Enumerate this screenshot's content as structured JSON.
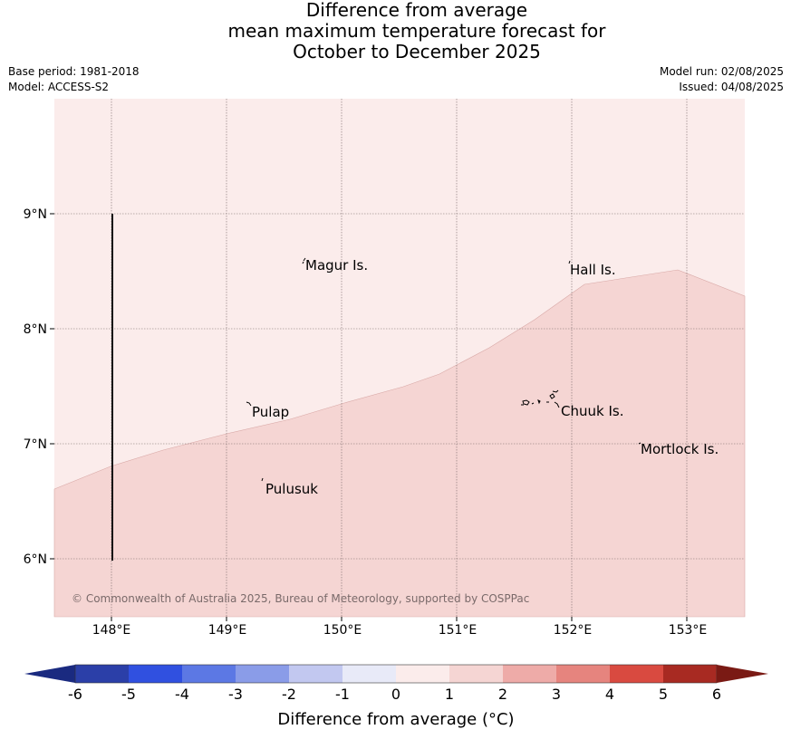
{
  "title": {
    "line1": "Difference from average",
    "line2": "mean maximum temperature forecast for",
    "line3": "October to December 2025"
  },
  "meta": {
    "base_period": "Base period: 1981-2018",
    "model": "Model: ACCESS-S2",
    "model_run": "Model run: 02/08/2025",
    "issued": "Issued: 04/08/2025"
  },
  "map": {
    "lon_labels": [
      "148°E",
      "149°E",
      "150°E",
      "151°E",
      "152°E",
      "153°E"
    ],
    "lat_labels": [
      "9°N",
      "8°N",
      "7°N",
      "6°N"
    ],
    "places": [
      {
        "name": "Magur Is.",
        "lon": 149.67,
        "lat": 8.57
      },
      {
        "name": "Hall Is.",
        "lon": 151.99,
        "lat": 8.54
      },
      {
        "name": "Pulap",
        "lon": 149.2,
        "lat": 7.33
      },
      {
        "name": "Chuuk Is.",
        "lon": 151.85,
        "lat": 7.33
      },
      {
        "name": "Mortlock Is.",
        "lon": 152.58,
        "lat": 6.98
      },
      {
        "name": "Pulusuk",
        "lon": 149.3,
        "lat": 6.67
      }
    ],
    "copyright": "© Commonwealth of Australia 2025, Bureau of Meteorology, supported by COSPPac",
    "shading": {
      "zone_1_to_2_color": "#f5d5d3",
      "zone_0_to_1_color": "#fbeceb"
    }
  },
  "colorbar": {
    "ticks": [
      "-6",
      "-5",
      "-4",
      "-3",
      "-2",
      "-1",
      "0",
      "1",
      "2",
      "3",
      "4",
      "5",
      "6"
    ],
    "colors": [
      "#2b3fa8",
      "#3050e0",
      "#5c78e4",
      "#8a9ce8",
      "#c2c8f0",
      "#e8eaf8",
      "#fbeceb",
      "#f5d5d3",
      "#eeaba8",
      "#e6847e",
      "#d94a40",
      "#a82a22"
    ],
    "low_extend_color": "#1a2a80",
    "high_extend_color": "#7a1a14",
    "label": "Difference from average (°C)"
  }
}
